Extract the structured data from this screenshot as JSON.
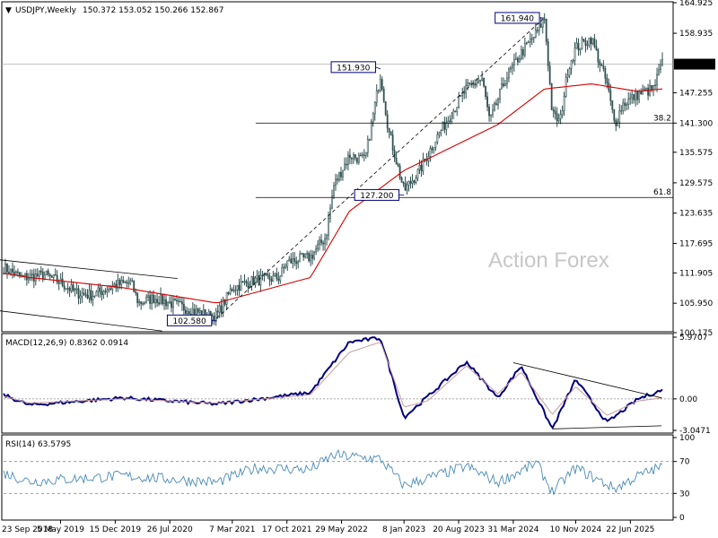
{
  "header": {
    "symbol": "USDJPY,Weekly",
    "ohlc": "150.372 153.052 150.266 152.867",
    "indicator_icon": "triangle-down-icon"
  },
  "watermark": "Action Forex",
  "price_axis": [
    "164.925",
    "158.935",
    "152.867",
    "147.255",
    "141.300",
    "135.575",
    "129.575",
    "123.635",
    "117.695",
    "111.905",
    "105.950",
    "100.175"
  ],
  "macd_axis": [
    "5.9707",
    "0.00",
    "-3.0471"
  ],
  "rsi_axis": [
    "100",
    "70",
    "30",
    "0"
  ],
  "date_axis": [
    "23 Sep 2018",
    "5 May 2019",
    "15 Dec 2019",
    "26 Jul 2020",
    "7 Mar 2021",
    "17 Oct 2021",
    "29 May 2022",
    "8 Jan 2023",
    "20 Aug 2023",
    "31 Mar 2024",
    "10 Nov 2024",
    "22 Jun 2025"
  ],
  "annotations": {
    "high1": "151.930",
    "low1": "127.200",
    "high2": "161.940",
    "low0": "102.580",
    "fib1": "38.2",
    "fib2": "61.8"
  },
  "last_price": "152.867",
  "colors": {
    "candles": "#2f4f4f",
    "ma": "#d40000",
    "macd_line": "#00007a",
    "macd_signal": "#c89a9a",
    "rsi": "#4a8ab4",
    "label_border": "#00007a"
  },
  "chart_data": [
    {
      "type": "candlestick",
      "title": "USDJPY,Weekly",
      "series": [
        {
          "name": "USDJPY,Weekly",
          "points": [
            [
              "Sep 2018",
              113.5
            ],
            [
              "Dec 2018",
              111
            ],
            [
              "Mar 2019",
              111.5
            ],
            [
              "May 2019",
              110
            ],
            [
              "Jul 2019",
              108
            ],
            [
              "Sep 2019",
              107.5
            ],
            [
              "Dec 2019",
              109.5
            ],
            [
              "Feb 2020",
              110
            ],
            [
              "Mar 2020",
              106
            ],
            [
              "May 2020",
              107
            ],
            [
              "Jul 2020",
              106
            ],
            [
              "Sep 2020",
              105
            ],
            [
              "Dec 2020",
              103.5
            ],
            [
              "Jan 2021",
              103.5
            ],
            [
              "Mar 2021",
              109
            ],
            [
              "Jun 2021",
              110.5
            ],
            [
              "Sep 2021",
              111
            ],
            [
              "Oct 2021",
              114
            ],
            [
              "Jan 2022",
              115
            ],
            [
              "Mar 2022",
              119
            ],
            [
              "Apr 2022",
              129
            ],
            [
              "Jun 2022",
              135
            ],
            [
              "Aug 2022",
              134
            ],
            [
              "Oct 2022",
              151
            ],
            [
              "Nov 2022",
              140
            ],
            [
              "Jan 2023",
              128
            ],
            [
              "Mar 2023",
              132
            ],
            [
              "May 2023",
              138
            ],
            [
              "Jul 2023",
              143
            ],
            [
              "Sep 2023",
              148
            ],
            [
              "Nov 2023",
              150
            ],
            [
              "Dec 2023",
              141.5
            ],
            [
              "Feb 2024",
              150
            ],
            [
              "Apr 2024",
              155
            ],
            [
              "Jun 2024",
              159
            ],
            [
              "Jul 2024",
              161.9
            ],
            [
              "Aug 2024",
              143
            ],
            [
              "Sep 2024",
              141.5
            ],
            [
              "Oct 2024",
              152
            ],
            [
              "Nov 2024",
              156
            ],
            [
              "Jan 2025",
              158
            ],
            [
              "Mar 2025",
              149
            ],
            [
              "Apr 2025",
              141
            ],
            [
              "May 2025",
              145
            ],
            [
              "Jul 2025",
              147
            ],
            [
              "Sep 2025",
              148
            ],
            [
              "Oct 2025",
              152.9
            ]
          ]
        },
        {
          "name": "MA",
          "points": [
            [
              "Sep 2018",
              112
            ],
            [
              "Jan 2019",
              111
            ],
            [
              "Jan 2020",
              109
            ],
            [
              "Jan 2021",
              106
            ],
            [
              "Jan 2022",
              111
            ],
            [
              "Jun 2022",
              124
            ],
            [
              "Jan 2023",
              132
            ],
            [
              "Jan 2024",
              141
            ],
            [
              "Jul 2024",
              148
            ],
            [
              "Jan 2025",
              149
            ],
            [
              "Jul 2025",
              147.5
            ],
            [
              "Oct 2025",
              148
            ]
          ]
        }
      ],
      "y_range": [
        100.175,
        164.925
      ],
      "lines": [
        "151.930",
        "127.200",
        "161.940",
        "102.580",
        "38.2",
        "61.8"
      ]
    },
    {
      "type": "line",
      "title": "MACD(12,26,9) 0.8362 0.0914",
      "series": [
        {
          "name": "MACD",
          "points": [
            [
              "Sep 2018",
              0.6
            ],
            [
              "Jan 2019",
              -0.6
            ],
            [
              "Jan 2020",
              0.1
            ],
            [
              "Jan 2021",
              -0.5
            ],
            [
              "Jan 2022",
              0.6
            ],
            [
              "Jun 2022",
              5.5
            ],
            [
              "Oct 2022",
              5.9
            ],
            [
              "Jan 2023",
              -1.8
            ],
            [
              "Apr 2023",
              0.2
            ],
            [
              "Sep 2023",
              3.6
            ],
            [
              "Jan 2024",
              0.1
            ],
            [
              "Apr 2024",
              3.2
            ],
            [
              "Aug 2024",
              -2.9
            ],
            [
              "Nov 2024",
              1.9
            ],
            [
              "Mar 2025",
              -2.3
            ],
            [
              "Jul 2025",
              0
            ],
            [
              "Oct 2025",
              0.8362
            ]
          ]
        },
        {
          "name": "Signal",
          "points": [
            [
              "Sep 2018",
              0.4
            ],
            [
              "Jan 2019",
              -0.4
            ],
            [
              "Jan 2020",
              0
            ],
            [
              "Jan 2021",
              -0.4
            ],
            [
              "Jan 2022",
              0.4
            ],
            [
              "Jun 2022",
              4.5
            ],
            [
              "Oct 2022",
              5.5
            ],
            [
              "Jan 2023",
              -0.8
            ],
            [
              "Apr 2023",
              -0.2
            ],
            [
              "Sep 2023",
              3.2
            ],
            [
              "Jan 2024",
              0.5
            ],
            [
              "Apr 2024",
              2.6
            ],
            [
              "Aug 2024",
              -1.5
            ],
            [
              "Nov 2024",
              1.2
            ],
            [
              "Mar 2025",
              -1.6
            ],
            [
              "Jul 2025",
              -0.2
            ],
            [
              "Oct 2025",
              0.0914
            ]
          ]
        }
      ],
      "y_range": [
        -3.0471,
        5.9707
      ]
    },
    {
      "type": "line",
      "title": "RSI(14) 63.5795",
      "series": [
        {
          "name": "RSI",
          "points": [
            [
              "Sep 2018",
              58
            ],
            [
              "Jan 2019",
              45
            ],
            [
              "Jan 2020",
              52
            ],
            [
              "Jan 2021",
              44
            ],
            [
              "Jun 2021",
              62
            ],
            [
              "Jan 2022",
              60
            ],
            [
              "Apr 2022",
              78
            ],
            [
              "Oct 2022",
              73
            ],
            [
              "Jan 2023",
              40
            ],
            [
              "Sep 2023",
              64
            ],
            [
              "Jan 2024",
              44
            ],
            [
              "Jun 2024",
              68
            ],
            [
              "Aug 2024",
              32
            ],
            [
              "Nov 2024",
              62
            ],
            [
              "Apr 2025",
              36
            ],
            [
              "Jul 2025",
              52
            ],
            [
              "Oct 2025",
              63.58
            ]
          ]
        }
      ],
      "y_range": [
        0,
        100
      ],
      "levels": [
        70,
        30
      ]
    }
  ]
}
